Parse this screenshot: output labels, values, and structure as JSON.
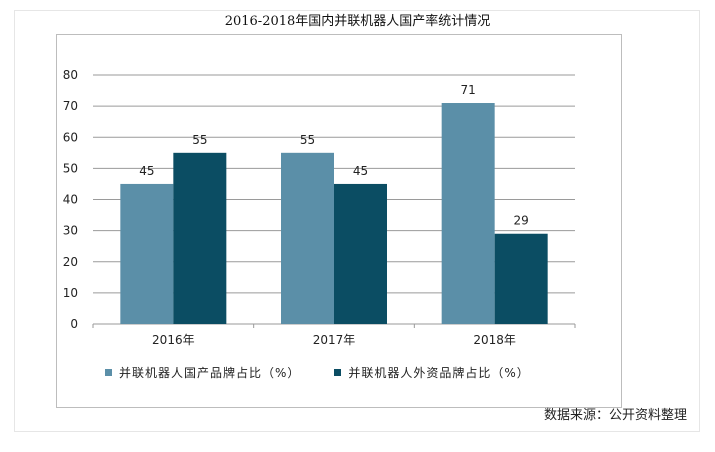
{
  "chart_data": {
    "type": "bar",
    "title": "2016-2018年国内并联机器人国产率统计情况",
    "categories": [
      "2016年",
      "2017年",
      "2018年"
    ],
    "series": [
      {
        "name": "并联机器人国产品牌占比（%）",
        "values": [
          45,
          55,
          71
        ],
        "color": "#5b8fa8"
      },
      {
        "name": "并联机器人外资品牌占比（%）",
        "values": [
          55,
          45,
          29
        ],
        "color": "#0b4d63"
      }
    ],
    "ylim": [
      0,
      80
    ],
    "yticks": [
      0,
      10,
      20,
      30,
      40,
      50,
      60,
      70,
      80
    ],
    "grid": true,
    "legend_position": "bottom-left",
    "xlabel": "",
    "ylabel": ""
  },
  "source_note": "数据来源：公开资料整理"
}
